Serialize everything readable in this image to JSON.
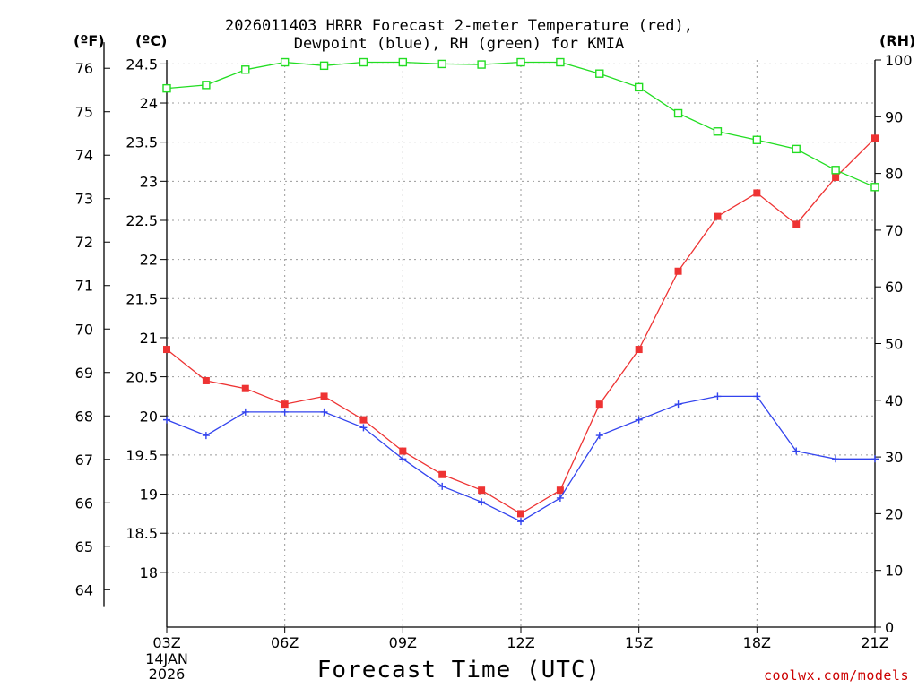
{
  "chart_data": {
    "type": "line",
    "title_lines": [
      "2026011403 HRRR Forecast 2-meter Temperature (red),",
      "Dewpoint (blue), RH (green) for KMIA"
    ],
    "unit_labels": {
      "fahrenheit": "(ºF)",
      "celsius": "(ºC)",
      "rh": "(RH)"
    },
    "xlabel": "Forecast Time (UTC)",
    "credit": "coolwx.com/models",
    "x_hours": [
      3,
      4,
      5,
      6,
      7,
      8,
      9,
      10,
      11,
      12,
      13,
      14,
      15,
      16,
      17,
      18,
      19,
      20,
      21
    ],
    "x_ticks": [
      {
        "hour": 3,
        "label": "03Z"
      },
      {
        "hour": 6,
        "label": "06Z"
      },
      {
        "hour": 9,
        "label": "09Z"
      },
      {
        "hour": 12,
        "label": "12Z"
      },
      {
        "hour": 15,
        "label": "15Z"
      },
      {
        "hour": 18,
        "label": "18Z"
      },
      {
        "hour": 21,
        "label": "21Z"
      }
    ],
    "date_label": [
      "14JAN",
      "2026"
    ],
    "xlim": [
      3,
      21
    ],
    "celsius_axis": {
      "ylim": [
        17.3,
        24.55
      ],
      "ticks": [
        {
          "v": 18,
          "label": "18"
        },
        {
          "v": 18.5,
          "label": "18.5"
        },
        {
          "v": 19,
          "label": "19"
        },
        {
          "v": 19.5,
          "label": "19.5"
        },
        {
          "v": 20,
          "label": "20"
        },
        {
          "v": 20.5,
          "label": "20.5"
        },
        {
          "v": 21,
          "label": "21"
        },
        {
          "v": 21.5,
          "label": "21.5"
        },
        {
          "v": 22,
          "label": "22"
        },
        {
          "v": 22.5,
          "label": "22.5"
        },
        {
          "v": 23,
          "label": "23"
        },
        {
          "v": 23.5,
          "label": "23.5"
        },
        {
          "v": 24,
          "label": "24"
        },
        {
          "v": 24.5,
          "label": "24.5"
        }
      ]
    },
    "fahrenheit_ticks": [
      {
        "v": 64,
        "label": "64"
      },
      {
        "v": 65,
        "label": "65"
      },
      {
        "v": 66,
        "label": "66"
      },
      {
        "v": 67,
        "label": "67"
      },
      {
        "v": 68,
        "label": "68"
      },
      {
        "v": 69,
        "label": "69"
      },
      {
        "v": 70,
        "label": "70"
      },
      {
        "v": 71,
        "label": "71"
      },
      {
        "v": 72,
        "label": "72"
      },
      {
        "v": 73,
        "label": "73"
      },
      {
        "v": 74,
        "label": "74"
      },
      {
        "v": 75,
        "label": "75"
      },
      {
        "v": 76,
        "label": "76"
      }
    ],
    "rh_axis": {
      "ylim": [
        0,
        100
      ],
      "ticks": [
        {
          "v": 0,
          "label": "0"
        },
        {
          "v": 10,
          "label": "10"
        },
        {
          "v": 20,
          "label": "20"
        },
        {
          "v": 30,
          "label": "30"
        },
        {
          "v": 40,
          "label": "40"
        },
        {
          "v": 50,
          "label": "50"
        },
        {
          "v": 60,
          "label": "60"
        },
        {
          "v": 70,
          "label": "70"
        },
        {
          "v": 80,
          "label": "80"
        },
        {
          "v": 90,
          "label": "90"
        },
        {
          "v": 100,
          "label": "100"
        }
      ]
    },
    "grid": true,
    "series": [
      {
        "name": "2-meter Temperature",
        "axis": "celsius",
        "color": "#ee3333",
        "marker": "filled-square",
        "values": [
          20.85,
          20.45,
          20.35,
          20.15,
          20.25,
          19.95,
          19.55,
          19.25,
          19.05,
          18.75,
          19.05,
          20.15,
          20.85,
          21.85,
          22.55,
          22.85,
          22.45,
          23.05,
          23.55
        ]
      },
      {
        "name": "Dewpoint",
        "axis": "celsius",
        "color": "#3344ee",
        "marker": "plus",
        "values": [
          19.95,
          19.75,
          20.05,
          20.05,
          20.05,
          19.85,
          19.45,
          19.1,
          18.9,
          18.65,
          18.95,
          19.75,
          19.95,
          20.15,
          20.25,
          20.25,
          19.55,
          19.45,
          19.45
        ]
      },
      {
        "name": "Relative Humidity",
        "axis": "rh",
        "color": "#22dd22",
        "marker": "open-square",
        "values": [
          95,
          95.6,
          98.3,
          99.6,
          99,
          99.6,
          99.6,
          99.3,
          99.2,
          99.6,
          99.6,
          97.6,
          95.2,
          90.6,
          87.4,
          85.9,
          84.3,
          80.6,
          77.6
        ]
      }
    ]
  }
}
